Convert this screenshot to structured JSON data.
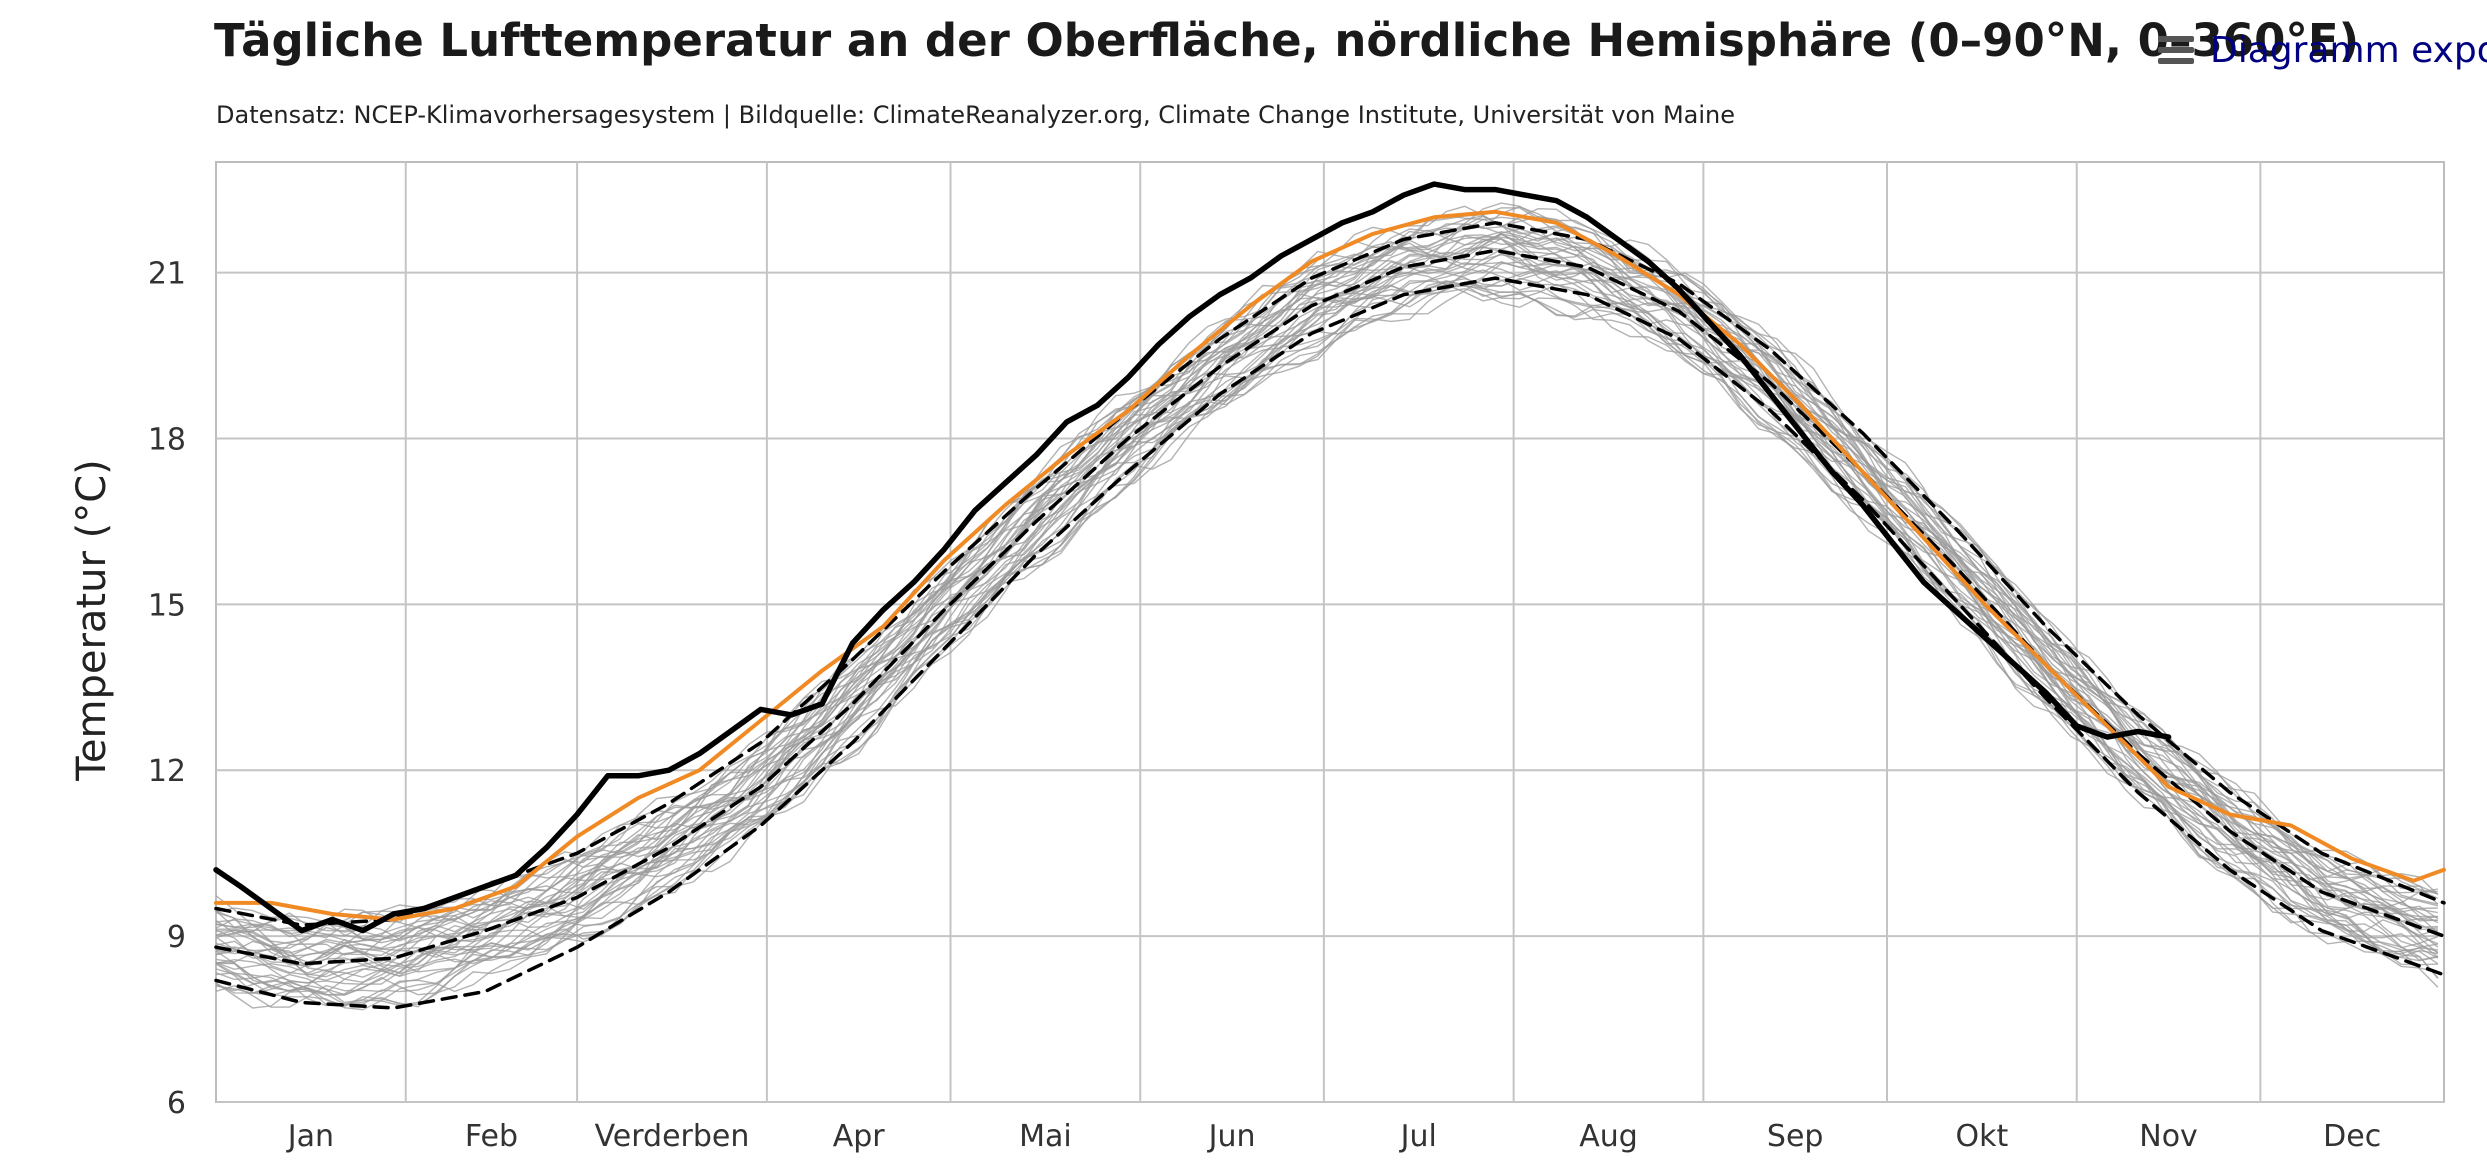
{
  "header": {
    "title": "Tägliche Lufttemperatur an der Oberfläche, nördliche Hemisphäre (0–90°N, 0–360°E)",
    "subtitle": "Datensatz: NCEP-Klimavorhersagesystem | Bildquelle: ClimateReanalyzer.org, Climate Change Institute, Universität von Maine",
    "export_label": "Diagramm exportieren",
    "export_icon": "menu-icon"
  },
  "chart_data": {
    "type": "line",
    "title": "Tägliche Lufttemperatur an der Oberfläche, nördliche Hemisphäre (0–90°N, 0–360°E)",
    "ylabel": "Temperatur (°C)",
    "xlabel": "",
    "ylim": [
      6,
      23
    ],
    "xlim": [
      1,
      365
    ],
    "yticks": [
      6,
      9,
      12,
      15,
      18,
      21
    ],
    "month_labels": [
      "Jan",
      "Feb",
      "Verderben",
      "Apr",
      "Mai",
      "Jun",
      "Jul",
      "Aug",
      "Sep",
      "Okt",
      "Nov",
      "Dec"
    ],
    "grid": true,
    "legend": "none",
    "series": [
      {
        "role": "current-year",
        "color": "#000000",
        "style": "solid",
        "x": [
          1,
          5,
          10,
          15,
          20,
          25,
          30,
          35,
          40,
          45,
          50,
          55,
          60,
          65,
          70,
          75,
          80,
          85,
          90,
          95,
          100,
          105,
          110,
          115,
          120,
          125,
          130,
          135,
          140,
          145,
          150,
          155,
          160,
          165,
          170,
          175,
          180,
          185,
          190,
          195,
          200,
          205,
          210,
          215,
          220,
          225,
          230,
          235,
          240,
          245,
          250,
          255,
          260,
          265,
          270,
          275,
          280,
          285,
          290,
          295,
          300,
          305,
          310,
          315,
          320
        ],
        "y": [
          10.2,
          9.9,
          9.5,
          9.1,
          9.3,
          9.1,
          9.4,
          9.5,
          9.7,
          9.9,
          10.1,
          10.6,
          11.2,
          11.9,
          11.9,
          12.0,
          12.3,
          12.7,
          13.1,
          13.0,
          13.2,
          14.3,
          14.9,
          15.4,
          16.0,
          16.7,
          17.2,
          17.7,
          18.3,
          18.6,
          19.1,
          19.7,
          20.2,
          20.6,
          20.9,
          21.3,
          21.6,
          21.9,
          22.1,
          22.4,
          22.6,
          22.5,
          22.5,
          22.4,
          22.3,
          22.0,
          21.6,
          21.2,
          20.7,
          20.1,
          19.5,
          18.8,
          18.1,
          17.4,
          16.8,
          16.1,
          15.4,
          14.9,
          14.4,
          13.9,
          13.4,
          12.8,
          12.6,
          12.7,
          12.6
        ]
      },
      {
        "role": "previous-year",
        "color": "#f08a24",
        "style": "solid",
        "x": [
          1,
          10,
          20,
          30,
          40,
          50,
          60,
          70,
          80,
          90,
          100,
          110,
          120,
          130,
          140,
          150,
          160,
          170,
          180,
          190,
          200,
          210,
          220,
          230,
          240,
          250,
          260,
          270,
          280,
          290,
          300,
          310,
          320,
          330,
          340,
          350,
          360,
          365
        ],
        "y": [
          9.6,
          9.6,
          9.4,
          9.3,
          9.5,
          9.9,
          10.8,
          11.5,
          12.0,
          12.9,
          13.8,
          14.6,
          15.8,
          16.8,
          17.7,
          18.5,
          19.5,
          20.4,
          21.2,
          21.7,
          22.0,
          22.1,
          21.9,
          21.3,
          20.6,
          19.7,
          18.6,
          17.4,
          16.2,
          15.0,
          13.9,
          12.8,
          11.7,
          11.2,
          11.0,
          10.4,
          10.0,
          10.2
        ]
      },
      {
        "role": "climatology-mean",
        "color": "#000000",
        "style": "dashed",
        "x": [
          1,
          15,
          30,
          45,
          60,
          75,
          90,
          105,
          120,
          135,
          150,
          165,
          180,
          195,
          210,
          225,
          240,
          255,
          270,
          285,
          300,
          315,
          330,
          345,
          365
        ],
        "y": [
          8.8,
          8.5,
          8.6,
          9.1,
          9.7,
          10.6,
          11.7,
          13.2,
          14.9,
          16.5,
          18.0,
          19.3,
          20.4,
          21.1,
          21.4,
          21.1,
          20.3,
          19.0,
          17.4,
          15.7,
          13.9,
          12.3,
          10.9,
          9.8,
          9.0
        ]
      },
      {
        "role": "climatology-upper",
        "color": "#000000",
        "style": "dashed",
        "x": [
          1,
          15,
          30,
          45,
          60,
          75,
          90,
          105,
          120,
          135,
          150,
          165,
          180,
          195,
          210,
          225,
          240,
          255,
          270,
          285,
          300,
          315,
          330,
          345,
          365
        ],
        "y": [
          9.5,
          9.2,
          9.3,
          9.9,
          10.5,
          11.4,
          12.5,
          14.0,
          15.6,
          17.1,
          18.5,
          19.8,
          20.9,
          21.6,
          21.9,
          21.6,
          20.8,
          19.6,
          18.1,
          16.4,
          14.6,
          13.0,
          11.6,
          10.5,
          9.6
        ]
      },
      {
        "role": "climatology-lower",
        "color": "#000000",
        "style": "dashed",
        "x": [
          1,
          15,
          30,
          45,
          60,
          75,
          90,
          105,
          120,
          135,
          150,
          165,
          180,
          195,
          210,
          225,
          240,
          255,
          270,
          285,
          300,
          315,
          330,
          345,
          365
        ],
        "y": [
          8.2,
          7.8,
          7.7,
          8.0,
          8.8,
          9.8,
          11.0,
          12.5,
          14.2,
          15.9,
          17.4,
          18.8,
          19.9,
          20.6,
          20.9,
          20.6,
          19.8,
          18.5,
          16.9,
          15.1,
          13.3,
          11.6,
          10.2,
          9.1,
          8.3
        ]
      }
    ],
    "background_years": {
      "color": "#9a9a9a",
      "count": 40,
      "amplitude_spread": 0.7,
      "note": "thin grey lines: individual years scattered around the climatology mean"
    }
  }
}
